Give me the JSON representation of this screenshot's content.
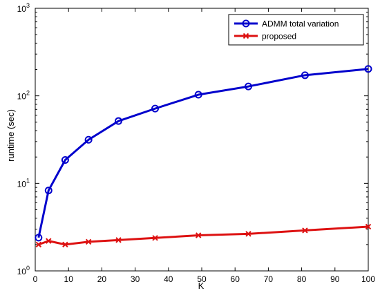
{
  "chart_data": {
    "type": "line",
    "title": "",
    "xlabel": "K",
    "ylabel": "runtime (sec)",
    "xlim": [
      0,
      100
    ],
    "ylim": [
      1,
      1000
    ],
    "yscale": "log",
    "xticks": [
      0,
      10,
      20,
      30,
      40,
      50,
      60,
      70,
      80,
      90,
      100
    ],
    "yticks": [
      {
        "value": 1,
        "base": "10",
        "exp": "0"
      },
      {
        "value": 10,
        "base": "10",
        "exp": "1"
      },
      {
        "value": 100,
        "base": "10",
        "exp": "2"
      },
      {
        "value": 1000,
        "base": "10",
        "exp": "3"
      }
    ],
    "grid": false,
    "legend_position": "top-right",
    "x": [
      1,
      4,
      9,
      16,
      25,
      36,
      49,
      64,
      81,
      100
    ],
    "series": [
      {
        "name": "ADMM total variation",
        "color": "#0000cc",
        "marker": "circle",
        "values": [
          2.4,
          8.3,
          18.5,
          31.5,
          51.5,
          71.5,
          103,
          128,
          172,
          203
        ]
      },
      {
        "name": "proposed",
        "color": "#dd1111",
        "marker": "x",
        "values": [
          2.0,
          2.2,
          2.0,
          2.15,
          2.25,
          2.38,
          2.55,
          2.65,
          2.9,
          3.2
        ]
      }
    ]
  }
}
